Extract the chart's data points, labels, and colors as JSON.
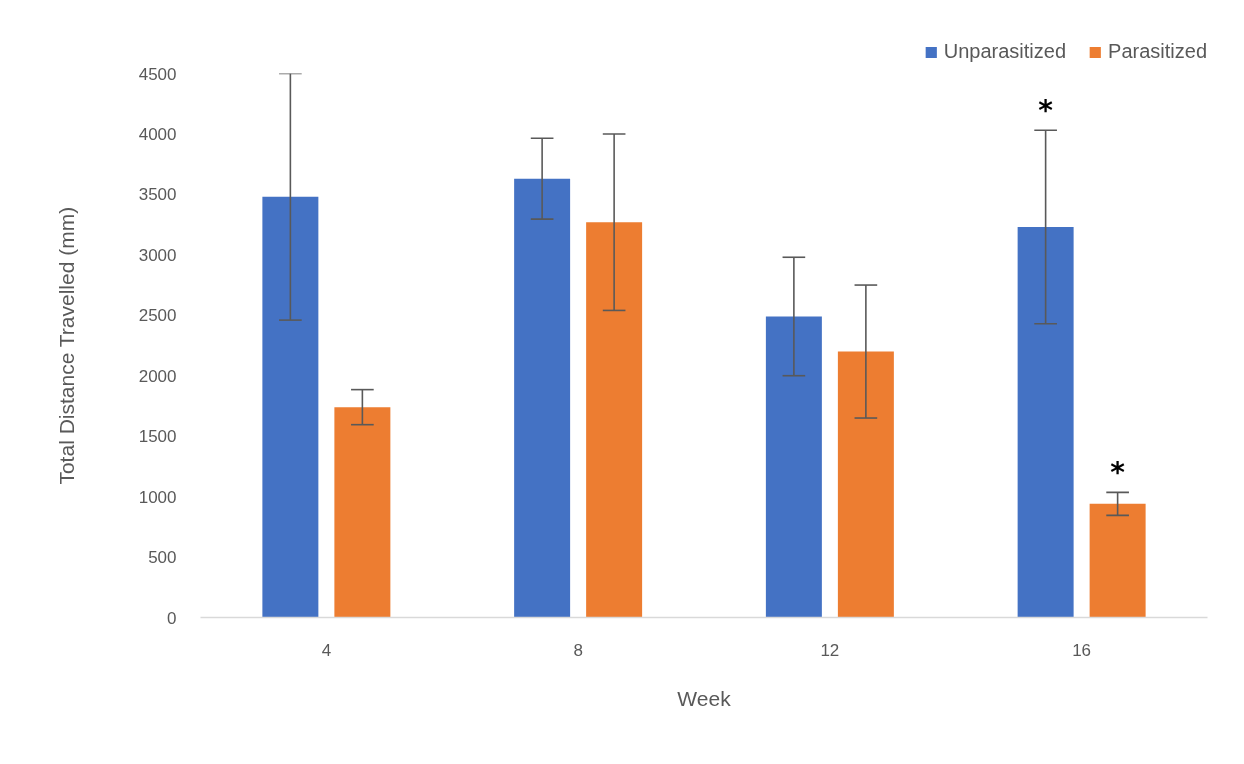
{
  "chart_data": {
    "type": "bar",
    "xlabel": "Week",
    "ylabel": "Total Distance Travelled (mm)",
    "categories": [
      "4",
      "8",
      "12",
      "16"
    ],
    "series": [
      {
        "name": "Unparasitized",
        "color": "#4472c4",
        "values": [
          3480,
          3630,
          2490,
          3230
        ],
        "errors": [
          1020,
          335,
          490,
          800
        ]
      },
      {
        "name": "Parasitized",
        "color": "#ed7d31",
        "values": [
          1740,
          3270,
          2200,
          940
        ],
        "errors": [
          145,
          730,
          550,
          95
        ]
      }
    ],
    "ylim": [
      0,
      4500
    ],
    "yticks": [
      0,
      500,
      1000,
      1500,
      2000,
      2500,
      3000,
      3500,
      4000,
      4500
    ],
    "legend": "top right",
    "annotations": [
      "*",
      "*"
    ]
  }
}
